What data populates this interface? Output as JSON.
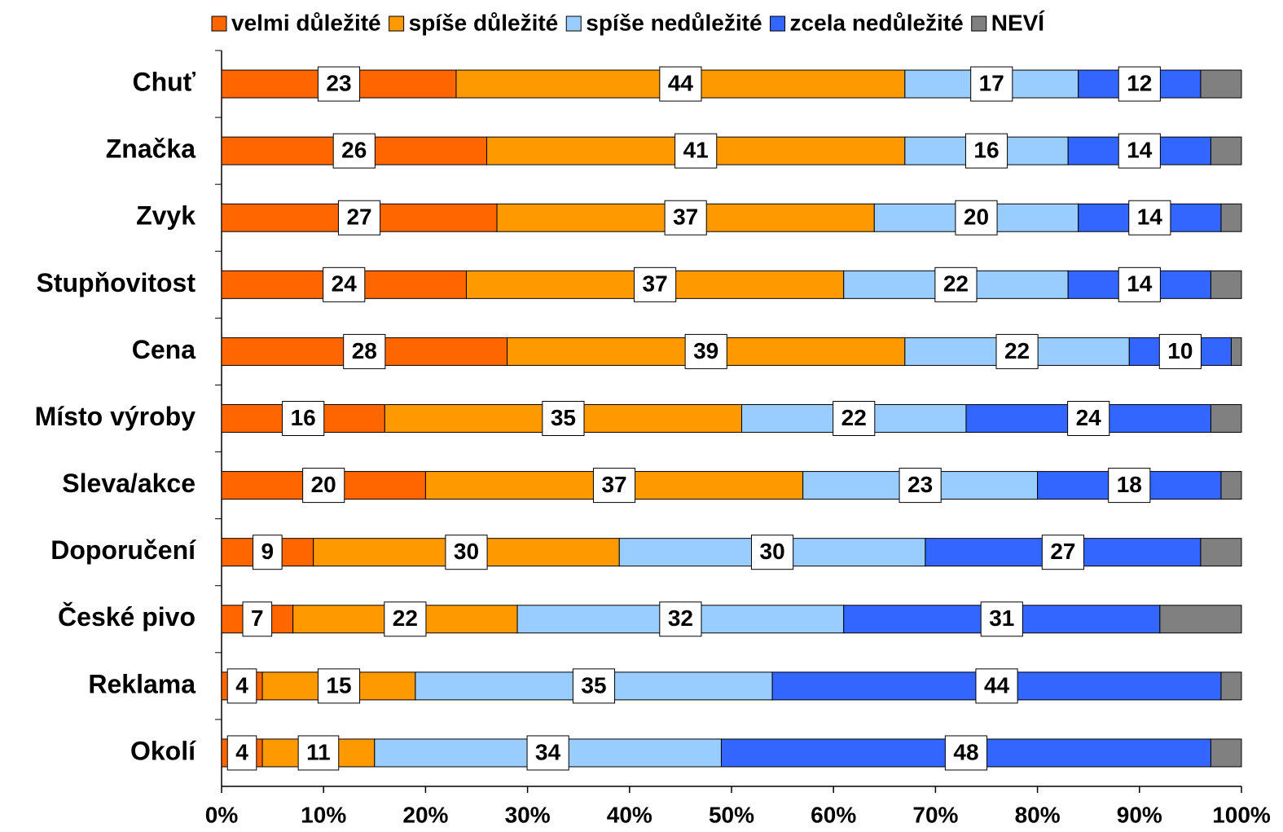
{
  "chart_data": {
    "type": "stacked_barh",
    "categories": [
      "Chuť",
      "Značka",
      "Zvyk",
      "Stupňovitost",
      "Cena",
      "Místo výroby",
      "Sleva/akce",
      "Doporučení",
      "České pivo",
      "Reklama",
      "Okolí"
    ],
    "series": [
      {
        "name": "velmi důležité",
        "color": "#ff6600",
        "values": [
          23,
          26,
          27,
          24,
          28,
          16,
          20,
          9,
          7,
          4,
          4
        ]
      },
      {
        "name": "spíše důležité",
        "color": "#ff9900",
        "values": [
          44,
          41,
          37,
          37,
          39,
          35,
          37,
          30,
          22,
          15,
          11
        ]
      },
      {
        "name": "spíše nedůležité",
        "color": "#99ccff",
        "values": [
          17,
          16,
          20,
          22,
          22,
          22,
          23,
          30,
          32,
          35,
          34
        ]
      },
      {
        "name": "zcela nedůležité",
        "color": "#3366ff",
        "values": [
          12,
          14,
          14,
          14,
          10,
          24,
          18,
          27,
          31,
          44,
          48
        ]
      },
      {
        "name": "NEVÍ",
        "color": "#808080",
        "values": [
          4,
          3,
          2,
          3,
          1,
          3,
          2,
          4,
          8,
          2,
          3
        ],
        "show_labels": false
      }
    ],
    "xlim": [
      0,
      100
    ],
    "xticks": [
      {
        "value": 0,
        "label": "0%"
      },
      {
        "value": 10,
        "label": "10%"
      },
      {
        "value": 20,
        "label": "20%"
      },
      {
        "value": 30,
        "label": "30%"
      },
      {
        "value": 40,
        "label": "40%"
      },
      {
        "value": 50,
        "label": "50%"
      },
      {
        "value": 60,
        "label": "60%"
      },
      {
        "value": 70,
        "label": "70%"
      },
      {
        "value": 80,
        "label": "80%"
      },
      {
        "value": 90,
        "label": "90%"
      },
      {
        "value": 100,
        "label": "100%"
      }
    ],
    "legend": "top"
  }
}
